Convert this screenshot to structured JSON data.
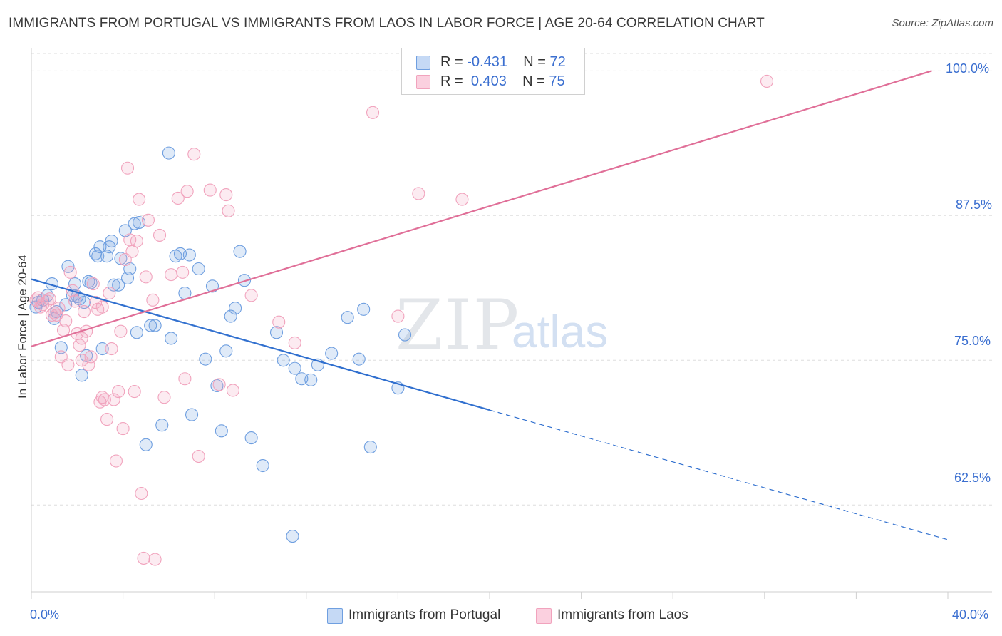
{
  "title": "IMMIGRANTS FROM PORTUGAL VS IMMIGRANTS FROM LAOS IN LABOR FORCE | AGE 20-64 CORRELATION CHART",
  "source": "Source: ZipAtlas.com",
  "watermark": {
    "zip": "ZIP",
    "atlas": "atlas"
  },
  "legend": {
    "portugal": {
      "r_label": "R = ",
      "r_value": "-0.431",
      "n_label": "N = ",
      "n_value": "72"
    },
    "laos": {
      "r_label": "R = ",
      "r_value": "0.403",
      "n_label": "N = ",
      "n_value": "75"
    }
  },
  "colors": {
    "portugal": "#6f9fe0",
    "portugal_line": "#3170cf",
    "laos": "#f1a3bd",
    "laos_line": "#e06f98",
    "tick_text": "#3b6fd0",
    "grid": "#dedede"
  },
  "bottom_legend": {
    "portugal": "Immigrants from Portugal",
    "laos": "Immigrants from Laos"
  },
  "chart_data": {
    "type": "scatter",
    "title": "IMMIGRANTS FROM PORTUGAL VS IMMIGRANTS FROM LAOS IN LABOR FORCE | AGE 20-64 CORRELATION CHART",
    "xlabel": "",
    "ylabel": "In Labor Force | Age 20-64",
    "xlim": [
      0,
      40
    ],
    "ylim": [
      55,
      101.5
    ],
    "x_tick_labels": [
      "0.0%",
      "40.0%"
    ],
    "y_ticks": [
      62.5,
      75.0,
      87.5,
      100.0
    ],
    "y_tick_labels": [
      "62.5%",
      "75.0%",
      "87.5%",
      "100.0%"
    ],
    "grid": true,
    "legend_position": "top-center",
    "series": [
      {
        "name": "Immigrants from Portugal",
        "color": "#6f9fe0",
        "trend": {
          "x": [
            0,
            20
          ],
          "y": [
            82.0,
            70.7
          ],
          "dashed_to": [
            40,
            59.5
          ]
        },
        "points": [
          [
            0.2,
            79.6
          ],
          [
            0.3,
            80.0
          ],
          [
            0.5,
            80.2
          ],
          [
            0.7,
            80.6
          ],
          [
            0.9,
            81.6
          ],
          [
            1.0,
            78.6
          ],
          [
            1.1,
            79.2
          ],
          [
            1.3,
            76.1
          ],
          [
            1.5,
            79.8
          ],
          [
            1.6,
            83.1
          ],
          [
            1.8,
            80.6
          ],
          [
            1.9,
            81.6
          ],
          [
            2.1,
            80.3
          ],
          [
            2.2,
            73.7
          ],
          [
            2.3,
            80.0
          ],
          [
            2.4,
            75.4
          ],
          [
            2.5,
            81.8
          ],
          [
            2.6,
            81.7
          ],
          [
            2.8,
            84.2
          ],
          [
            2.9,
            84.0
          ],
          [
            3.0,
            84.8
          ],
          [
            3.1,
            76.0
          ],
          [
            3.4,
            84.8
          ],
          [
            3.5,
            85.3
          ],
          [
            3.6,
            81.5
          ],
          [
            3.8,
            81.5
          ],
          [
            3.9,
            83.8
          ],
          [
            4.1,
            86.2
          ],
          [
            4.2,
            82.1
          ],
          [
            4.3,
            82.9
          ],
          [
            4.5,
            86.8
          ],
          [
            4.6,
            77.4
          ],
          [
            4.7,
            86.9
          ],
          [
            5.0,
            67.7
          ],
          [
            5.2,
            78.0
          ],
          [
            5.4,
            78.0
          ],
          [
            5.7,
            69.4
          ],
          [
            6.0,
            92.9
          ],
          [
            6.1,
            76.9
          ],
          [
            6.3,
            84.0
          ],
          [
            6.5,
            84.2
          ],
          [
            6.7,
            80.8
          ],
          [
            6.9,
            84.1
          ],
          [
            7.0,
            70.3
          ],
          [
            7.3,
            82.9
          ],
          [
            7.6,
            75.1
          ],
          [
            7.9,
            81.4
          ],
          [
            8.1,
            72.8
          ],
          [
            8.3,
            68.9
          ],
          [
            8.5,
            75.8
          ],
          [
            8.7,
            78.8
          ],
          [
            8.9,
            79.5
          ],
          [
            9.1,
            84.4
          ],
          [
            9.3,
            81.9
          ],
          [
            9.6,
            68.3
          ],
          [
            10.1,
            65.9
          ],
          [
            10.7,
            77.4
          ],
          [
            11.0,
            75.0
          ],
          [
            11.4,
            59.8
          ],
          [
            11.5,
            74.3
          ],
          [
            11.8,
            73.4
          ],
          [
            12.2,
            73.3
          ],
          [
            12.5,
            74.6
          ],
          [
            13.1,
            75.6
          ],
          [
            13.8,
            78.7
          ],
          [
            14.3,
            75.1
          ],
          [
            14.5,
            79.4
          ],
          [
            14.8,
            67.5
          ],
          [
            16.0,
            72.6
          ],
          [
            16.3,
            77.2
          ],
          [
            2.0,
            80.5
          ],
          [
            3.3,
            84.0
          ]
        ]
      },
      {
        "name": "Immigrants from Laos",
        "color": "#f1a3bd",
        "trend": {
          "x": [
            0,
            39.3
          ],
          "y": [
            76.2,
            100.0
          ]
        },
        "points": [
          [
            0.2,
            80.2
          ],
          [
            0.3,
            80.4
          ],
          [
            0.4,
            79.6
          ],
          [
            0.5,
            79.8
          ],
          [
            0.7,
            80.1
          ],
          [
            0.8,
            80.3
          ],
          [
            0.9,
            78.9
          ],
          [
            1.0,
            79.1
          ],
          [
            1.1,
            78.9
          ],
          [
            1.2,
            79.5
          ],
          [
            1.3,
            75.3
          ],
          [
            1.4,
            77.6
          ],
          [
            1.5,
            78.4
          ],
          [
            1.6,
            74.6
          ],
          [
            1.7,
            82.6
          ],
          [
            1.8,
            81.0
          ],
          [
            1.9,
            80.1
          ],
          [
            2.0,
            77.3
          ],
          [
            2.1,
            76.3
          ],
          [
            2.2,
            76.9
          ],
          [
            2.3,
            79.2
          ],
          [
            2.4,
            77.5
          ],
          [
            2.5,
            74.6
          ],
          [
            2.6,
            75.3
          ],
          [
            2.7,
            81.6
          ],
          [
            2.8,
            80.0
          ],
          [
            2.9,
            79.4
          ],
          [
            3.0,
            71.4
          ],
          [
            3.1,
            71.8
          ],
          [
            3.2,
            71.6
          ],
          [
            3.3,
            69.9
          ],
          [
            3.4,
            80.8
          ],
          [
            3.5,
            76.0
          ],
          [
            3.6,
            71.6
          ],
          [
            3.7,
            66.3
          ],
          [
            3.8,
            72.3
          ],
          [
            3.9,
            77.5
          ],
          [
            4.0,
            69.1
          ],
          [
            4.1,
            83.7
          ],
          [
            4.2,
            91.6
          ],
          [
            4.3,
            85.4
          ],
          [
            4.4,
            84.4
          ],
          [
            4.5,
            72.3
          ],
          [
            4.6,
            85.3
          ],
          [
            4.7,
            88.9
          ],
          [
            4.8,
            63.5
          ],
          [
            4.9,
            57.9
          ],
          [
            5.0,
            82.2
          ],
          [
            5.1,
            87.1
          ],
          [
            5.3,
            80.2
          ],
          [
            5.4,
            57.8
          ],
          [
            5.6,
            85.8
          ],
          [
            5.8,
            71.8
          ],
          [
            6.1,
            82.4
          ],
          [
            6.4,
            89.0
          ],
          [
            6.6,
            82.6
          ],
          [
            6.8,
            89.6
          ],
          [
            7.1,
            92.8
          ],
          [
            7.3,
            66.7
          ],
          [
            7.8,
            89.7
          ],
          [
            8.2,
            72.9
          ],
          [
            8.5,
            89.3
          ],
          [
            8.6,
            87.9
          ],
          [
            8.8,
            72.4
          ],
          [
            9.6,
            80.6
          ],
          [
            10.8,
            78.3
          ],
          [
            11.5,
            76.5
          ],
          [
            14.9,
            96.4
          ],
          [
            16.0,
            78.8
          ],
          [
            16.9,
            89.4
          ],
          [
            18.8,
            88.9
          ],
          [
            32.1,
            99.1
          ],
          [
            6.7,
            73.4
          ],
          [
            3.1,
            79.6
          ],
          [
            2.2,
            75.0
          ]
        ]
      }
    ]
  }
}
